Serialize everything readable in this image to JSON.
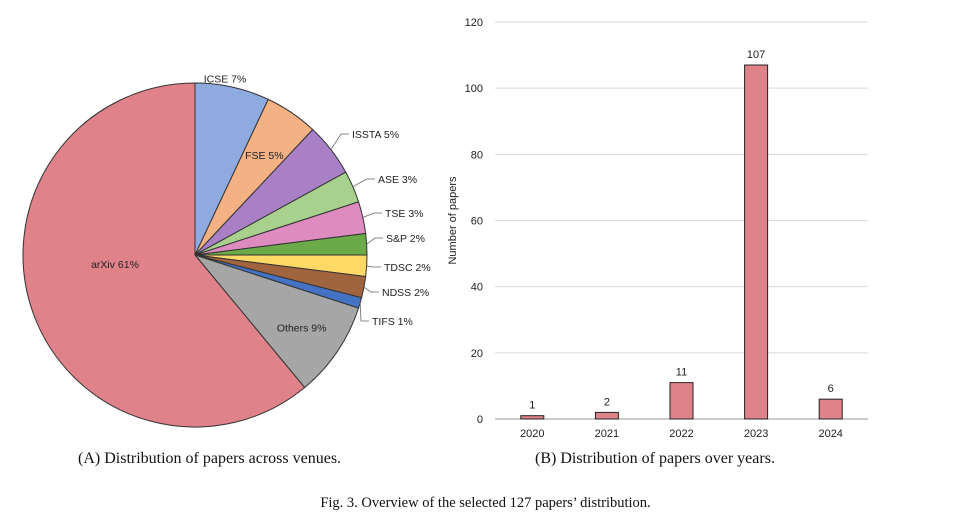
{
  "chart_data": [
    {
      "type": "pie",
      "title": "",
      "categories": [
        "ICSE",
        "FSE",
        "ISSTA",
        "ASE",
        "TSE",
        "S&P",
        "TDSC",
        "NDSS",
        "TIFS",
        "Others",
        "arXiv"
      ],
      "values": [
        7,
        5,
        5,
        3,
        3,
        2,
        2,
        2,
        1,
        9,
        61
      ],
      "labels": [
        "ICSE 7%",
        "FSE 5%",
        "ISSTA 5%",
        "ASE 3%",
        "TSE 3%",
        "S&P 2%",
        "TDSC 2%",
        "NDSS 2%",
        "TIFS 1%",
        "Others 9%",
        "arXiv 61%"
      ],
      "colors": [
        "#8eaadf",
        "#f4b183",
        "#a97fc6",
        "#a9d18e",
        "#de8cc0",
        "#6aaa48",
        "#ffd966",
        "#a0653f",
        "#4472c4",
        "#a6a6a6",
        "#e0828a"
      ]
    },
    {
      "type": "bar",
      "title": "",
      "categories": [
        "2020",
        "2021",
        "2022",
        "2023",
        "2024"
      ],
      "values": [
        1,
        2,
        11,
        107,
        6
      ],
      "data_labels": [
        "1",
        "2",
        "11",
        "107",
        "6"
      ],
      "xlabel": "",
      "ylabel": "Number of papers",
      "ylim": [
        0,
        120
      ],
      "yticks": [
        "0",
        "20",
        "40",
        "60",
        "80",
        "100",
        "120"
      ],
      "grid": true,
      "bar_color": "#e0828a"
    }
  ],
  "captions": {
    "a": "(A) Distribution of papers across venues.",
    "b": "(B) Distribution of papers over years.",
    "figure": "Fig. 3.  Overview of the selected 127 papers’ distribution."
  }
}
